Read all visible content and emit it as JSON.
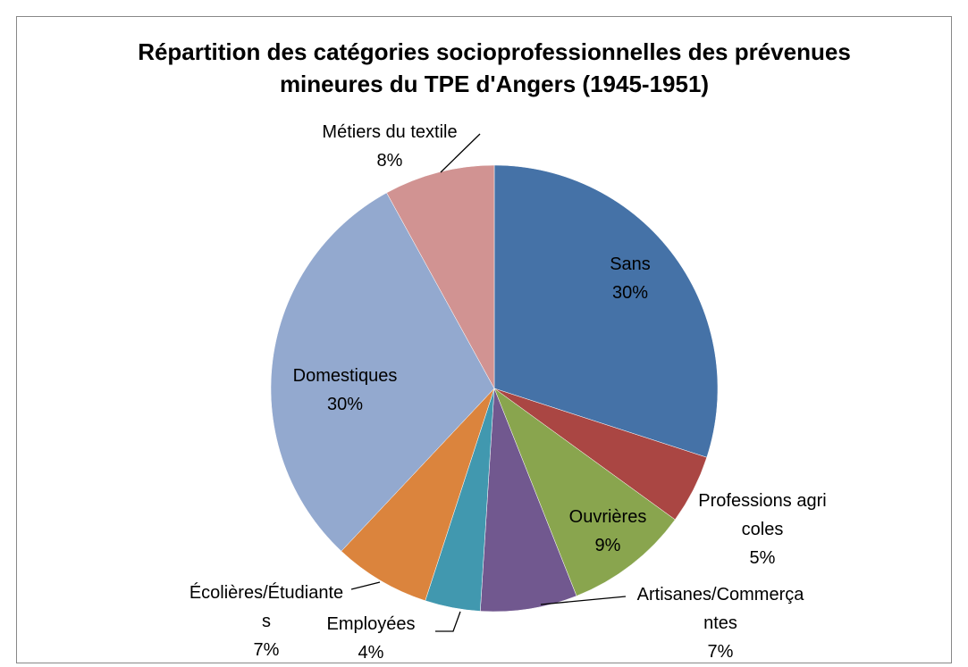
{
  "chart_data": {
    "type": "pie",
    "title": "Répartition des catégories socioprofessionnelles des prévenues mineures du TPE d'Angers (1945-1951)",
    "categories": [
      "Sans",
      "Professions agricoles",
      "Ouvrières",
      "Artisanes/Commerçantes",
      "Employées",
      "Écolières/Étudiantes",
      "Domestiques",
      "Métiers du textile"
    ],
    "values": [
      30,
      5,
      9,
      7,
      4,
      7,
      30,
      8
    ],
    "value_labels": [
      "30%",
      "5%",
      "9%",
      "7%",
      "4%",
      "7%",
      "30%",
      "8%"
    ],
    "colors": [
      "#4572a7",
      "#aa4643",
      "#89a54e",
      "#71588f",
      "#4198af",
      "#db843d",
      "#93a9cf",
      "#d19392"
    ]
  }
}
